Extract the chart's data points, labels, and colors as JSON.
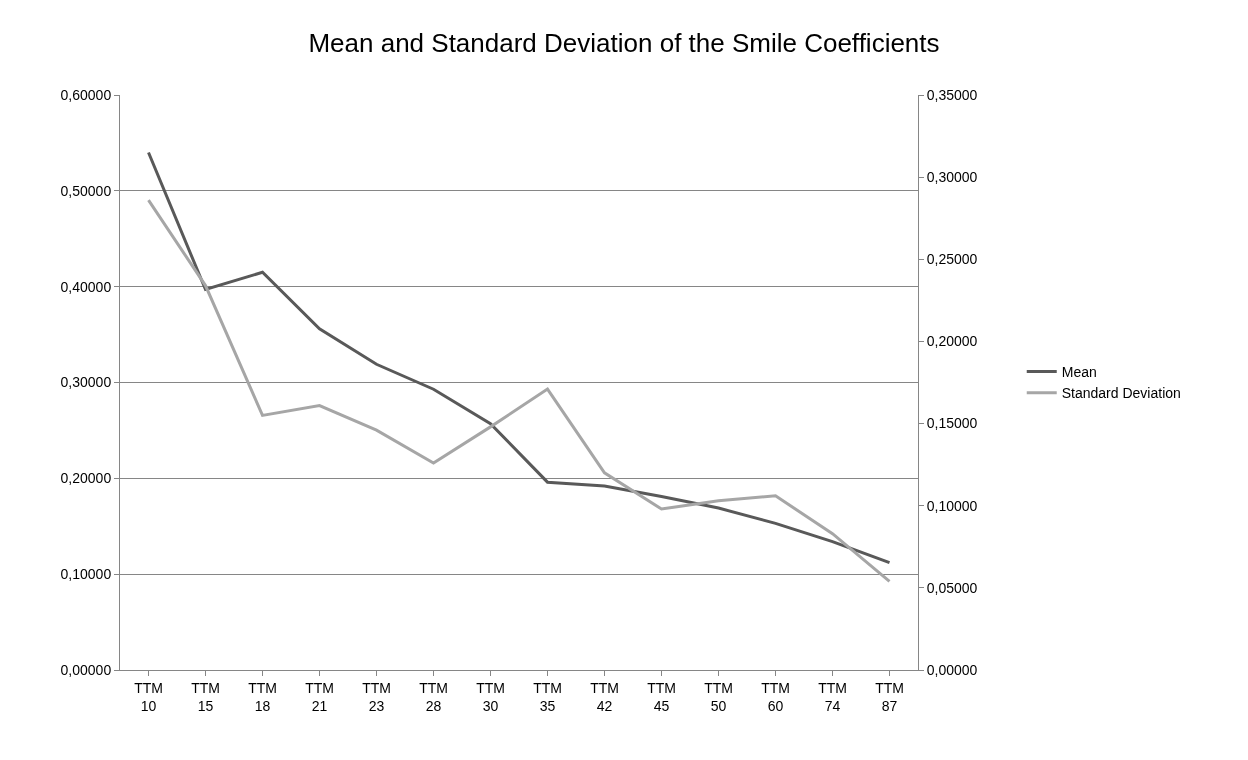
{
  "chart_data": {
    "type": "line",
    "title": "Mean and Standard Deviation of the Smile Coefficients",
    "categories": [
      "TTM\n10",
      "TTM\n15",
      "TTM\n18",
      "TTM\n21",
      "TTM\n23",
      "TTM\n28",
      "TTM\n30",
      "TTM\n35",
      "TTM\n42",
      "TTM\n45",
      "TTM\n50",
      "TTM\n60",
      "TTM\n74",
      "TTM\n87"
    ],
    "series": [
      {
        "name": "Mean",
        "color": "#595959",
        "values": [
          0.54,
          0.397,
          0.415,
          0.356,
          0.319,
          0.293,
          0.257,
          0.196,
          0.192,
          0.181,
          0.169,
          0.153,
          0.134,
          0.112
        ]
      },
      {
        "name": "Standard Deviation",
        "color": "#a6a6a6",
        "axis": "y2",
        "values": [
          0.286,
          0.234,
          0.155,
          0.161,
          0.146,
          0.126,
          0.148,
          0.171,
          0.12,
          0.098,
          0.103,
          0.106,
          0.083,
          0.054
        ]
      }
    ],
    "ylim": [
      0,
      0.6
    ],
    "yticks": [
      {
        "value": 0,
        "label": "0,00000"
      },
      {
        "value": 0.1,
        "label": "0,10000"
      },
      {
        "value": 0.2,
        "label": "0,20000"
      },
      {
        "value": 0.3,
        "label": "0,30000"
      },
      {
        "value": 0.4,
        "label": "0,40000"
      },
      {
        "value": 0.5,
        "label": "0,50000"
      },
      {
        "value": 0.6,
        "label": "0,60000"
      }
    ],
    "y2lim": [
      0,
      0.35
    ],
    "y2ticks": [
      {
        "value": 0,
        "label": "0,00000"
      },
      {
        "value": 0.05,
        "label": "0,05000"
      },
      {
        "value": 0.1,
        "label": "0,10000"
      },
      {
        "value": 0.15,
        "label": "0,15000"
      },
      {
        "value": 0.2,
        "label": "0,20000"
      },
      {
        "value": 0.25,
        "label": "0,25000"
      },
      {
        "value": 0.3,
        "label": "0,30000"
      },
      {
        "value": 0.35,
        "label": "0,35000"
      }
    ],
    "grid": "y",
    "legend": "right",
    "marker": "none",
    "line_style": "solid"
  }
}
